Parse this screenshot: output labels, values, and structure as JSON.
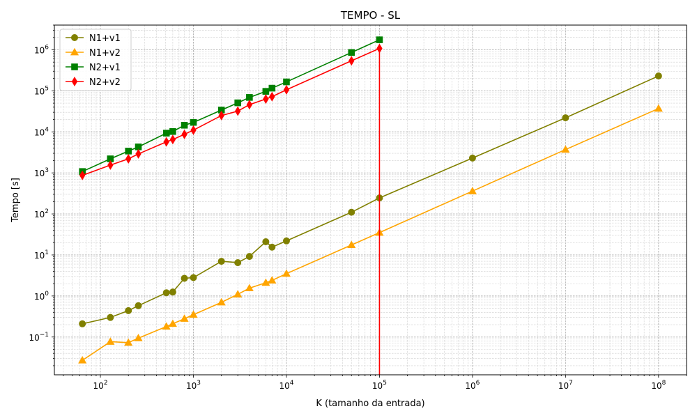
{
  "chart_data": {
    "type": "line",
    "title": "TEMPO - SL",
    "xlabel": "K (tamanho da entrada)",
    "ylabel": "Tempo [s]",
    "xscale": "log",
    "yscale": "log",
    "xlim": [
      32,
      200000000
    ],
    "ylim": [
      0.012,
      4000000
    ],
    "grid": true,
    "legend_position": "top-left",
    "x_ticks": [
      {
        "value": 100,
        "base": "10",
        "exp": "2"
      },
      {
        "value": 1000,
        "base": "10",
        "exp": "3"
      },
      {
        "value": 10000,
        "base": "10",
        "exp": "4"
      },
      {
        "value": 100000,
        "base": "10",
        "exp": "5"
      },
      {
        "value": 1000000,
        "base": "10",
        "exp": "6"
      },
      {
        "value": 10000000,
        "base": "10",
        "exp": "7"
      },
      {
        "value": 100000000,
        "base": "10",
        "exp": "8"
      }
    ],
    "y_ticks": [
      {
        "value": 0.1,
        "base": "10",
        "exp": "−1"
      },
      {
        "value": 1,
        "base": "10",
        "exp": "0"
      },
      {
        "value": 10,
        "base": "10",
        "exp": "1"
      },
      {
        "value": 100,
        "base": "10",
        "exp": "2"
      },
      {
        "value": 1000,
        "base": "10",
        "exp": "3"
      },
      {
        "value": 10000,
        "base": "10",
        "exp": "4"
      },
      {
        "value": 100000,
        "base": "10",
        "exp": "5"
      },
      {
        "value": 1000000,
        "base": "10",
        "exp": "6"
      }
    ],
    "series": [
      {
        "name": "N1+v1",
        "color": "#808000",
        "marker": "circle",
        "x": [
          64,
          128,
          200,
          256,
          512,
          600,
          800,
          1000,
          2000,
          3000,
          4000,
          6000,
          7000,
          10000,
          50000,
          100000,
          1000000,
          10000000,
          100000000
        ],
        "y": [
          0.21,
          0.3,
          0.44,
          0.58,
          1.2,
          1.25,
          2.7,
          2.8,
          7.0,
          6.5,
          9.2,
          21,
          15.5,
          22,
          110,
          245,
          2300,
          22000,
          230000
        ]
      },
      {
        "name": "N1+v2",
        "color": "#ffa500",
        "marker": "triangle",
        "x": [
          64,
          128,
          200,
          256,
          512,
          600,
          800,
          1000,
          2000,
          3000,
          4000,
          6000,
          7000,
          10000,
          50000,
          100000,
          1000000,
          10000000,
          100000000
        ],
        "y": [
          0.027,
          0.077,
          0.073,
          0.094,
          0.18,
          0.21,
          0.28,
          0.35,
          0.7,
          1.1,
          1.55,
          2.1,
          2.4,
          3.5,
          17.5,
          35,
          360,
          3700,
          37000
        ]
      },
      {
        "name": "N2+v1",
        "color": "#008000",
        "marker": "square",
        "x": [
          64,
          128,
          200,
          256,
          512,
          600,
          800,
          1000,
          2000,
          3000,
          4000,
          6000,
          7000,
          10000,
          50000,
          100000
        ],
        "y": [
          1080,
          2200,
          3400,
          4300,
          9300,
          10200,
          14500,
          17000,
          34000,
          51000,
          69000,
          97000,
          116000,
          165000,
          860000,
          1750000
        ]
      },
      {
        "name": "N2+v2",
        "color": "#ff0000",
        "marker": "diamond",
        "x": [
          64,
          128,
          200,
          256,
          512,
          600,
          800,
          1000,
          2000,
          3000,
          4000,
          6000,
          7000,
          10000,
          50000,
          100000
        ],
        "y": [
          870,
          1550,
          2200,
          2900,
          5700,
          6500,
          8700,
          11000,
          25000,
          32000,
          46000,
          63000,
          72000,
          106000,
          540000,
          1080000
        ],
        "drop_to_axis_at_x": 100000
      }
    ]
  }
}
